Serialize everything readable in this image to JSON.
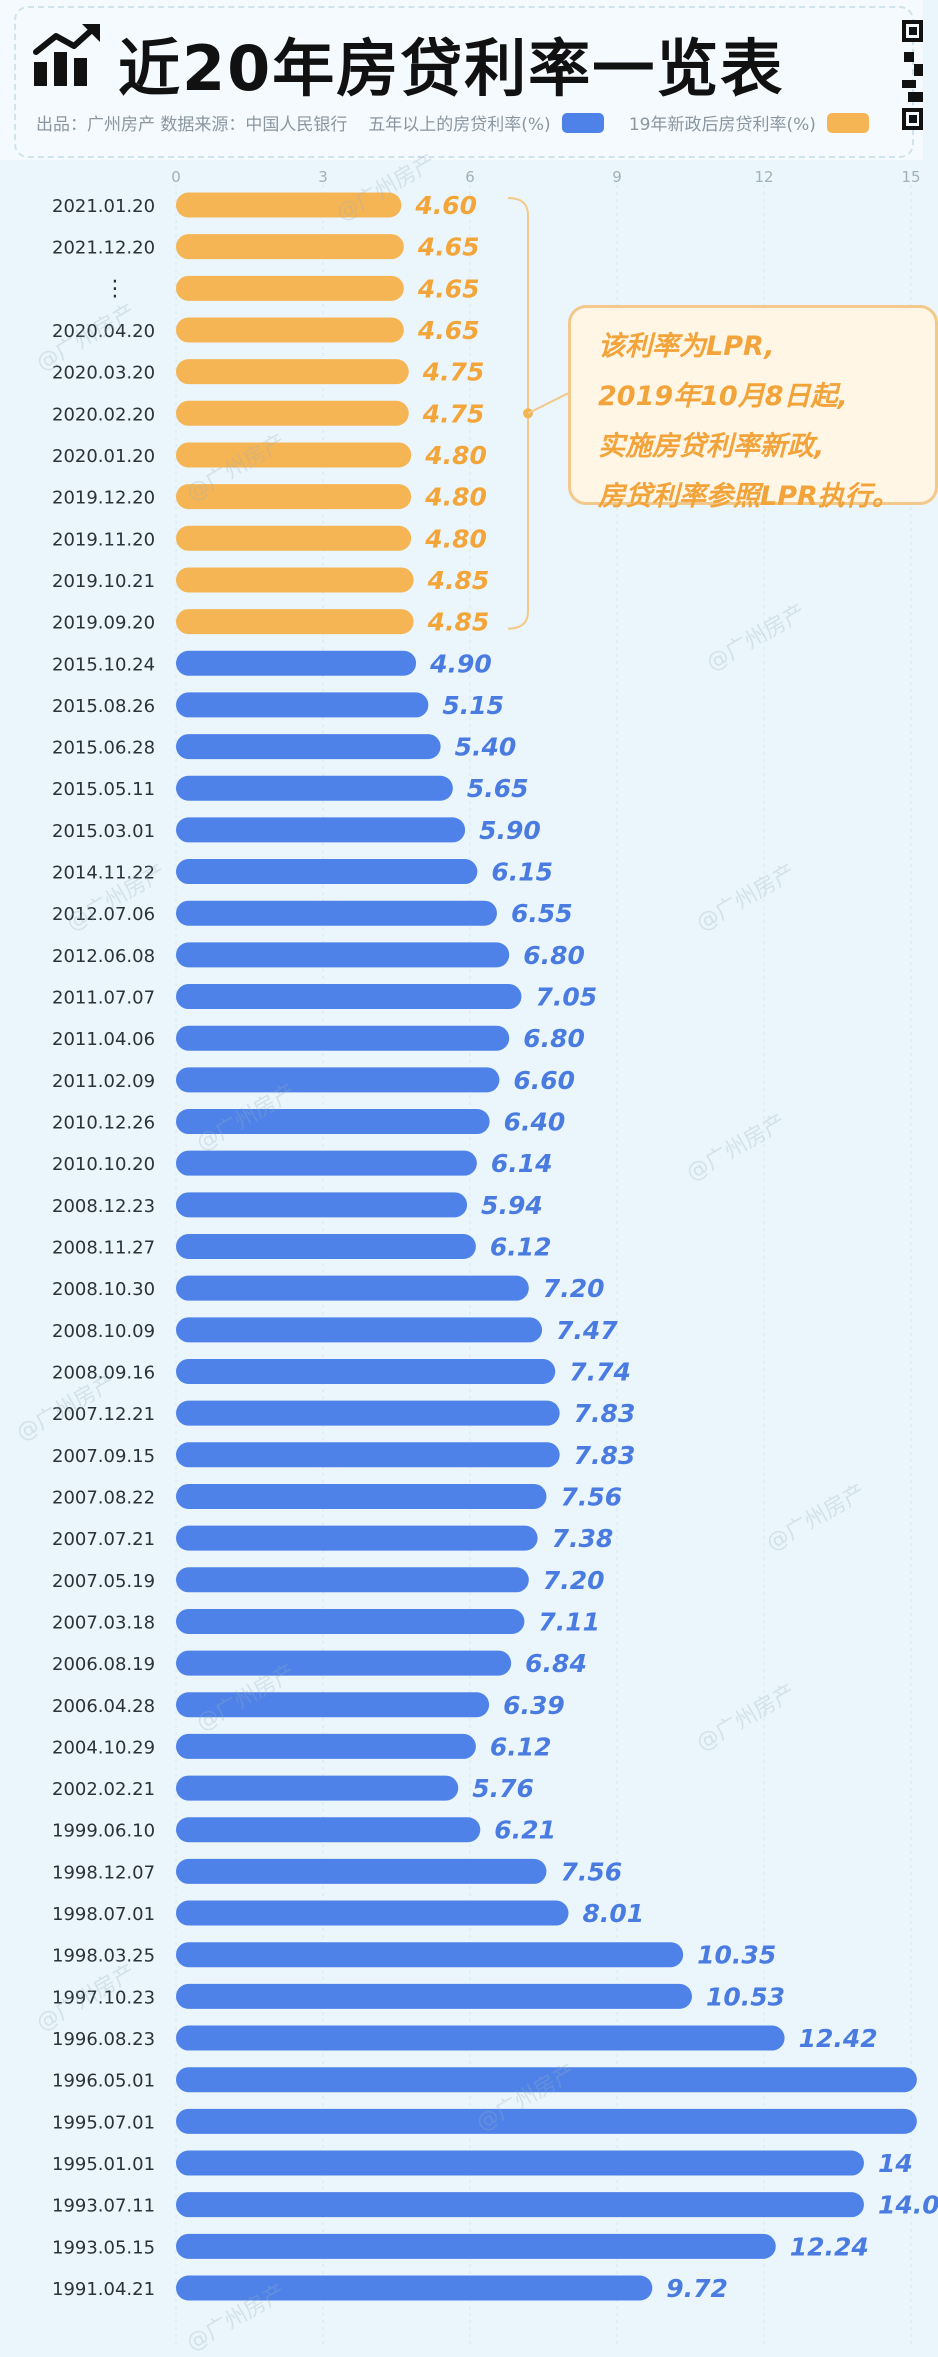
{
  "title": "近20年房贷利率一览表",
  "legend": {
    "source": "出品：广州房产  数据来源：中国人民银行",
    "series_blue": "五年以上的房贷利率(%)",
    "series_orange": "19年新政后房贷利率(%)"
  },
  "annotation": {
    "lines": [
      "该利率为LPR,",
      "2019年10月8日起,",
      "实施房贷利率新政,",
      "房贷利率参照LPR执行。"
    ]
  },
  "watermark_text": "@广州房产",
  "colors": {
    "blue": "#4f82e8",
    "orange": "#f5b555",
    "label_blue": "#4a7be0",
    "label_orange": "#f3a53a"
  },
  "chart_data": {
    "type": "bar",
    "orientation": "horizontal",
    "x_ticks": [
      0,
      3,
      6,
      9,
      12,
      15
    ],
    "xlim": [
      0,
      15
    ],
    "grid": true,
    "categories": [
      "2021.01.20",
      "2021.12.20",
      "⋮",
      "2020.04.20",
      "2020.03.20",
      "2020.02.20",
      "2020.01.20",
      "2019.12.20",
      "2019.11.20",
      "2019.10.21",
      "2019.09.20",
      "2015.10.24",
      "2015.08.26",
      "2015.06.28",
      "2015.05.11",
      "2015.03.01",
      "2014.11.22",
      "2012.07.06",
      "2012.06.08",
      "2011.07.07",
      "2011.04.06",
      "2011.02.09",
      "2010.12.26",
      "2010.10.20",
      "2008.12.23",
      "2008.11.27",
      "2008.10.30",
      "2008.10.09",
      "2008.09.16",
      "2007.12.21",
      "2007.09.15",
      "2007.08.22",
      "2007.07.21",
      "2007.05.19",
      "2007.03.18",
      "2006.08.19",
      "2006.04.28",
      "2004.10.29",
      "2002.02.21",
      "1999.06.10",
      "1998.12.07",
      "1998.07.01",
      "1998.03.25",
      "1997.10.23",
      "1996.08.23",
      "1996.05.01",
      "1995.07.01",
      "1995.01.01",
      "1993.07.11",
      "1993.05.15",
      "1991.04.21"
    ],
    "values": [
      4.6,
      4.65,
      4.65,
      4.65,
      4.75,
      4.75,
      4.8,
      4.8,
      4.8,
      4.85,
      4.85,
      4.9,
      5.15,
      5.4,
      5.65,
      5.9,
      6.15,
      6.55,
      6.8,
      7.05,
      6.8,
      6.6,
      6.4,
      6.14,
      5.94,
      6.12,
      7.2,
      7.47,
      7.74,
      7.83,
      7.83,
      7.56,
      7.38,
      7.2,
      7.11,
      6.84,
      6.39,
      6.12,
      5.76,
      6.21,
      7.56,
      8.01,
      10.35,
      10.53,
      12.42,
      15.12,
      15.12,
      14.04,
      14.04,
      12.24,
      9.72
    ],
    "value_labels": [
      "4.60",
      "4.65",
      "4.65",
      "4.65",
      "4.75",
      "4.75",
      "4.80",
      "4.80",
      "4.80",
      "4.85",
      "4.85",
      "4.90",
      "5.15",
      "5.40",
      "5.65",
      "5.90",
      "6.15",
      "6.55",
      "6.80",
      "7.05",
      "6.80",
      "6.60",
      "6.40",
      "6.14",
      "5.94",
      "6.12",
      "7.20",
      "7.47",
      "7.74",
      "7.83",
      "7.83",
      "7.56",
      "7.38",
      "7.20",
      "7.11",
      "6.84",
      "6.39",
      "6.12",
      "5.76",
      "6.21",
      "7.56",
      "8.01",
      "10.35",
      "10.53",
      "12.42",
      "",
      "",
      "14",
      "14.0",
      "12.24",
      "9.72"
    ],
    "series_index": [
      1,
      1,
      1,
      1,
      1,
      1,
      1,
      1,
      1,
      1,
      1,
      0,
      0,
      0,
      0,
      0,
      0,
      0,
      0,
      0,
      0,
      0,
      0,
      0,
      0,
      0,
      0,
      0,
      0,
      0,
      0,
      0,
      0,
      0,
      0,
      0,
      0,
      0,
      0,
      0,
      0,
      0,
      0,
      0,
      0,
      0,
      0,
      0,
      0,
      0,
      0
    ]
  }
}
